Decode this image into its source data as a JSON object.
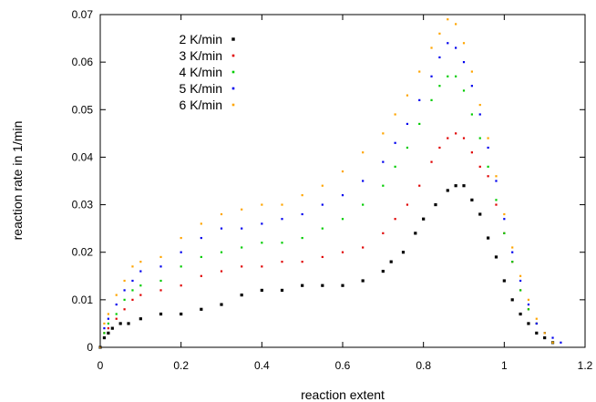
{
  "chart_data": {
    "type": "scatter",
    "xlabel": "reaction extent",
    "ylabel": "reaction rate in 1/min",
    "xlim": [
      0,
      1.2
    ],
    "ylim": [
      0,
      0.07
    ],
    "xticks": [
      "0",
      "0.2",
      "0.4",
      "0.6",
      "0.8",
      "1",
      "1.2"
    ],
    "yticks": [
      "0",
      "0.01",
      "0.02",
      "0.03",
      "0.04",
      "0.05",
      "0.06",
      "0.07"
    ],
    "grid": false,
    "legend": "top-left",
    "series": [
      {
        "name": "2 K/min",
        "color": "#000000",
        "points": [
          [
            0.0,
            0.0
          ],
          [
            0.01,
            0.002
          ],
          [
            0.02,
            0.003
          ],
          [
            0.03,
            0.004
          ],
          [
            0.05,
            0.005
          ],
          [
            0.07,
            0.005
          ],
          [
            0.1,
            0.006
          ],
          [
            0.15,
            0.007
          ],
          [
            0.2,
            0.007
          ],
          [
            0.25,
            0.008
          ],
          [
            0.3,
            0.009
          ],
          [
            0.35,
            0.011
          ],
          [
            0.4,
            0.012
          ],
          [
            0.45,
            0.012
          ],
          [
            0.5,
            0.013
          ],
          [
            0.55,
            0.013
          ],
          [
            0.6,
            0.013
          ],
          [
            0.65,
            0.014
          ],
          [
            0.7,
            0.016
          ],
          [
            0.72,
            0.018
          ],
          [
            0.75,
            0.02
          ],
          [
            0.78,
            0.024
          ],
          [
            0.8,
            0.027
          ],
          [
            0.83,
            0.03
          ],
          [
            0.86,
            0.033
          ],
          [
            0.88,
            0.034
          ],
          [
            0.9,
            0.034
          ],
          [
            0.92,
            0.031
          ],
          [
            0.94,
            0.028
          ],
          [
            0.96,
            0.023
          ],
          [
            0.98,
            0.019
          ],
          [
            1.0,
            0.014
          ],
          [
            1.02,
            0.01
          ],
          [
            1.04,
            0.007
          ],
          [
            1.06,
            0.005
          ],
          [
            1.08,
            0.003
          ],
          [
            1.1,
            0.002
          ],
          [
            1.12,
            0.001
          ]
        ]
      },
      {
        "name": "3 K/min",
        "color": "#e00000",
        "points": [
          [
            0.0,
            0.0
          ],
          [
            0.01,
            0.003
          ],
          [
            0.02,
            0.004
          ],
          [
            0.04,
            0.006
          ],
          [
            0.06,
            0.008
          ],
          [
            0.08,
            0.01
          ],
          [
            0.1,
            0.011
          ],
          [
            0.15,
            0.012
          ],
          [
            0.2,
            0.013
          ],
          [
            0.25,
            0.015
          ],
          [
            0.3,
            0.016
          ],
          [
            0.35,
            0.017
          ],
          [
            0.4,
            0.017
          ],
          [
            0.45,
            0.018
          ],
          [
            0.5,
            0.018
          ],
          [
            0.55,
            0.019
          ],
          [
            0.6,
            0.02
          ],
          [
            0.65,
            0.021
          ],
          [
            0.7,
            0.024
          ],
          [
            0.73,
            0.027
          ],
          [
            0.76,
            0.03
          ],
          [
            0.79,
            0.034
          ],
          [
            0.82,
            0.039
          ],
          [
            0.84,
            0.042
          ],
          [
            0.86,
            0.044
          ],
          [
            0.88,
            0.045
          ],
          [
            0.9,
            0.044
          ],
          [
            0.92,
            0.041
          ],
          [
            0.94,
            0.038
          ],
          [
            0.96,
            0.036
          ],
          [
            0.98,
            0.03
          ],
          [
            1.0,
            0.024
          ],
          [
            1.02,
            0.018
          ],
          [
            1.04,
            0.012
          ],
          [
            1.06,
            0.008
          ],
          [
            1.08,
            0.005
          ],
          [
            1.1,
            0.003
          ],
          [
            1.12,
            0.001
          ]
        ]
      },
      {
        "name": "4 K/min",
        "color": "#00cc00",
        "points": [
          [
            0.0,
            0.0
          ],
          [
            0.01,
            0.003
          ],
          [
            0.02,
            0.005
          ],
          [
            0.04,
            0.007
          ],
          [
            0.06,
            0.01
          ],
          [
            0.08,
            0.012
          ],
          [
            0.1,
            0.013
          ],
          [
            0.15,
            0.014
          ],
          [
            0.2,
            0.017
          ],
          [
            0.25,
            0.019
          ],
          [
            0.3,
            0.02
          ],
          [
            0.35,
            0.021
          ],
          [
            0.4,
            0.022
          ],
          [
            0.45,
            0.022
          ],
          [
            0.5,
            0.023
          ],
          [
            0.55,
            0.025
          ],
          [
            0.6,
            0.027
          ],
          [
            0.65,
            0.03
          ],
          [
            0.7,
            0.034
          ],
          [
            0.73,
            0.038
          ],
          [
            0.76,
            0.042
          ],
          [
            0.79,
            0.047
          ],
          [
            0.82,
            0.052
          ],
          [
            0.84,
            0.055
          ],
          [
            0.86,
            0.057
          ],
          [
            0.88,
            0.057
          ],
          [
            0.9,
            0.054
          ],
          [
            0.92,
            0.049
          ],
          [
            0.94,
            0.044
          ],
          [
            0.96,
            0.038
          ],
          [
            0.98,
            0.031
          ],
          [
            1.0,
            0.024
          ],
          [
            1.02,
            0.018
          ],
          [
            1.04,
            0.012
          ],
          [
            1.06,
            0.008
          ],
          [
            1.08,
            0.005
          ],
          [
            1.1,
            0.003
          ],
          [
            1.12,
            0.001
          ]
        ]
      },
      {
        "name": "5 K/min",
        "color": "#0000ee",
        "points": [
          [
            0.0,
            0.0
          ],
          [
            0.01,
            0.004
          ],
          [
            0.02,
            0.006
          ],
          [
            0.04,
            0.009
          ],
          [
            0.06,
            0.012
          ],
          [
            0.08,
            0.014
          ],
          [
            0.1,
            0.016
          ],
          [
            0.15,
            0.017
          ],
          [
            0.2,
            0.02
          ],
          [
            0.25,
            0.023
          ],
          [
            0.3,
            0.025
          ],
          [
            0.35,
            0.025
          ],
          [
            0.4,
            0.026
          ],
          [
            0.45,
            0.027
          ],
          [
            0.5,
            0.028
          ],
          [
            0.55,
            0.03
          ],
          [
            0.6,
            0.032
          ],
          [
            0.65,
            0.035
          ],
          [
            0.7,
            0.039
          ],
          [
            0.73,
            0.043
          ],
          [
            0.76,
            0.047
          ],
          [
            0.79,
            0.052
          ],
          [
            0.82,
            0.057
          ],
          [
            0.84,
            0.061
          ],
          [
            0.86,
            0.064
          ],
          [
            0.88,
            0.063
          ],
          [
            0.9,
            0.06
          ],
          [
            0.92,
            0.055
          ],
          [
            0.94,
            0.049
          ],
          [
            0.96,
            0.042
          ],
          [
            0.98,
            0.035
          ],
          [
            1.0,
            0.027
          ],
          [
            1.02,
            0.02
          ],
          [
            1.04,
            0.014
          ],
          [
            1.06,
            0.009
          ],
          [
            1.08,
            0.005
          ],
          [
            1.1,
            0.003
          ],
          [
            1.12,
            0.002
          ],
          [
            1.14,
            0.001
          ]
        ]
      },
      {
        "name": "6 K/min",
        "color": "#ffa500",
        "points": [
          [
            0.0,
            0.0
          ],
          [
            0.01,
            0.005
          ],
          [
            0.02,
            0.007
          ],
          [
            0.04,
            0.011
          ],
          [
            0.06,
            0.014
          ],
          [
            0.08,
            0.017
          ],
          [
            0.1,
            0.018
          ],
          [
            0.15,
            0.019
          ],
          [
            0.2,
            0.023
          ],
          [
            0.25,
            0.026
          ],
          [
            0.3,
            0.028
          ],
          [
            0.35,
            0.029
          ],
          [
            0.4,
            0.03
          ],
          [
            0.45,
            0.03
          ],
          [
            0.5,
            0.032
          ],
          [
            0.55,
            0.034
          ],
          [
            0.6,
            0.037
          ],
          [
            0.65,
            0.041
          ],
          [
            0.7,
            0.045
          ],
          [
            0.73,
            0.049
          ],
          [
            0.76,
            0.053
          ],
          [
            0.79,
            0.058
          ],
          [
            0.82,
            0.063
          ],
          [
            0.84,
            0.066
          ],
          [
            0.86,
            0.069
          ],
          [
            0.88,
            0.068
          ],
          [
            0.9,
            0.064
          ],
          [
            0.92,
            0.058
          ],
          [
            0.94,
            0.051
          ],
          [
            0.96,
            0.044
          ],
          [
            0.98,
            0.036
          ],
          [
            1.0,
            0.028
          ],
          [
            1.02,
            0.021
          ],
          [
            1.04,
            0.015
          ],
          [
            1.06,
            0.01
          ],
          [
            1.08,
            0.006
          ],
          [
            1.1,
            0.003
          ],
          [
            1.12,
            0.001
          ]
        ]
      }
    ]
  }
}
